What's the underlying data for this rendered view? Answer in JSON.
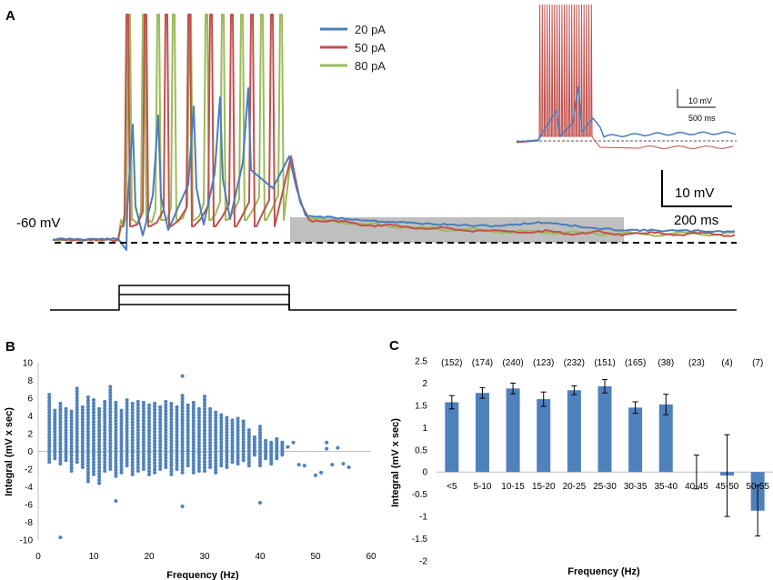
{
  "colors": {
    "blue": "#4a7ebb",
    "red": "#c0504d",
    "green": "#9bbb59",
    "bar": "#4f81bd",
    "scatter": "#4f81bd",
    "shade": "#bfbfbf"
  },
  "chart_data": [
    {
      "id": "A",
      "type": "line",
      "panel_label": "A",
      "title": "",
      "baseline_label": "-60 mV",
      "series": [
        {
          "name": "20 pA",
          "color": "#4a7ebb"
        },
        {
          "name": "50 pA",
          "color": "#c0504d"
        },
        {
          "name": "80 pA",
          "color": "#9bbb59"
        }
      ],
      "scalebar": {
        "voltage": "10 mV",
        "time": "200 ms"
      },
      "inset_scalebar": {
        "voltage": "10 mV",
        "time": "500 ms"
      },
      "stimulus_steps": 3
    },
    {
      "id": "B",
      "type": "scatter",
      "panel_label": "B",
      "title": "",
      "xlabel": "Frequency (Hz)",
      "ylabel": "Integral (mV x sec)",
      "xlim": [
        0,
        60
      ],
      "ylim": [
        -10,
        10
      ],
      "xticks": [
        0,
        10,
        20,
        30,
        40,
        50,
        60
      ],
      "yticks": [
        -10,
        -8,
        -6,
        -4,
        -2,
        0,
        2,
        4,
        6,
        8,
        10
      ],
      "columns": [
        {
          "x": 2,
          "lo": -1.2,
          "hi": 6.4
        },
        {
          "x": 3,
          "lo": -0.8,
          "hi": 4.6
        },
        {
          "x": 4,
          "lo": -1.4,
          "hi": 5.4
        },
        {
          "x": 5,
          "lo": -1.0,
          "hi": 4.8
        },
        {
          "x": 6,
          "lo": -2.2,
          "hi": 4.5
        },
        {
          "x": 7,
          "lo": -1.2,
          "hi": 7.1
        },
        {
          "x": 8,
          "lo": -1.8,
          "hi": 5.0
        },
        {
          "x": 9,
          "lo": -3.4,
          "hi": 6.1
        },
        {
          "x": 10,
          "lo": -2.6,
          "hi": 5.8
        },
        {
          "x": 11,
          "lo": -3.6,
          "hi": 4.8
        },
        {
          "x": 12,
          "lo": -2.2,
          "hi": 5.6
        },
        {
          "x": 13,
          "lo": -2.0,
          "hi": 7.3
        },
        {
          "x": 14,
          "lo": -2.8,
          "hi": 5.5
        },
        {
          "x": 15,
          "lo": -2.4,
          "hi": 4.6
        },
        {
          "x": 16,
          "lo": -1.6,
          "hi": 5.8
        },
        {
          "x": 17,
          "lo": -2.6,
          "hi": 5.4
        },
        {
          "x": 18,
          "lo": -2.2,
          "hi": 5.6
        },
        {
          "x": 19,
          "lo": -2.0,
          "hi": 5.5
        },
        {
          "x": 20,
          "lo": -2.6,
          "hi": 5.2
        },
        {
          "x": 21,
          "lo": -2.4,
          "hi": 5.4
        },
        {
          "x": 22,
          "lo": -2.0,
          "hi": 5.0
        },
        {
          "x": 23,
          "lo": -1.8,
          "hi": 5.6
        },
        {
          "x": 24,
          "lo": -2.6,
          "hi": 5.4
        },
        {
          "x": 25,
          "lo": -2.0,
          "hi": 5.0
        },
        {
          "x": 26,
          "lo": -2.4,
          "hi": 6.3
        },
        {
          "x": 27,
          "lo": -1.6,
          "hi": 5.2
        },
        {
          "x": 28,
          "lo": -2.4,
          "hi": 5.5
        },
        {
          "x": 29,
          "lo": -2.2,
          "hi": 4.8
        },
        {
          "x": 30,
          "lo": -2.2,
          "hi": 6.2
        },
        {
          "x": 31,
          "lo": -1.8,
          "hi": 4.8
        },
        {
          "x": 32,
          "lo": -2.4,
          "hi": 4.4
        },
        {
          "x": 33,
          "lo": -1.6,
          "hi": 4.1
        },
        {
          "x": 34,
          "lo": -1.8,
          "hi": 3.8
        },
        {
          "x": 35,
          "lo": -1.2,
          "hi": 3.5
        },
        {
          "x": 36,
          "lo": -1.4,
          "hi": 3.7
        },
        {
          "x": 37,
          "lo": -1.0,
          "hi": 3.4
        },
        {
          "x": 38,
          "lo": -1.6,
          "hi": 2.4
        },
        {
          "x": 39,
          "lo": -0.4,
          "hi": 1.6
        },
        {
          "x": 40,
          "lo": -1.6,
          "hi": 2.8
        },
        {
          "x": 41,
          "lo": -0.8,
          "hi": 1.2
        },
        {
          "x": 42,
          "lo": -1.4,
          "hi": 1.0
        },
        {
          "x": 43,
          "lo": -0.8,
          "hi": 1.4
        },
        {
          "x": 44,
          "lo": -0.4,
          "hi": 1.0
        }
      ],
      "points": [
        {
          "x": 4,
          "y": -9.7
        },
        {
          "x": 14,
          "y": -5.6
        },
        {
          "x": 26,
          "y": -6.2
        },
        {
          "x": 26,
          "y": 8.5
        },
        {
          "x": 40,
          "y": -5.8
        },
        {
          "x": 45,
          "y": 0.5
        },
        {
          "x": 46,
          "y": 1.0
        },
        {
          "x": 47,
          "y": -1.5
        },
        {
          "x": 48,
          "y": -1.6
        },
        {
          "x": 50,
          "y": -2.7
        },
        {
          "x": 51,
          "y": -2.4
        },
        {
          "x": 52,
          "y": 1.0
        },
        {
          "x": 52,
          "y": 0.3
        },
        {
          "x": 53,
          "y": -1.5
        },
        {
          "x": 54,
          "y": 0.4
        },
        {
          "x": 55,
          "y": -1.4
        },
        {
          "x": 56,
          "y": -1.8
        }
      ]
    },
    {
      "id": "C",
      "type": "bar",
      "panel_label": "C",
      "title": "",
      "xlabel": "Frequency (Hz)",
      "ylabel": "Integral (mV x sec)",
      "ylim": [
        -2,
        2.5
      ],
      "yticks": [
        "2.5",
        "2",
        "1.5",
        "1",
        "0.5",
        "0",
        "-0.5",
        "-1",
        "-1.5",
        "-2"
      ],
      "categories": [
        "<5",
        "5-10",
        "10-15",
        "15-20",
        "20-25",
        "25-30",
        "30-35",
        "35-40",
        "40-45",
        "45-50",
        "50-55"
      ],
      "values": [
        1.57,
        1.78,
        1.88,
        1.64,
        1.84,
        1.93,
        1.45,
        1.52,
        0.0,
        -0.08,
        -0.87
      ],
      "errors": [
        0.15,
        0.12,
        0.12,
        0.16,
        0.1,
        0.15,
        0.13,
        0.23,
        0.38,
        0.92,
        0.57
      ],
      "counts": [
        "(152)",
        "(174)",
        "(240)",
        "(123)",
        "(232)",
        "(151)",
        "(165)",
        "(38)",
        "(23)",
        "(4)",
        "(7)"
      ]
    }
  ]
}
